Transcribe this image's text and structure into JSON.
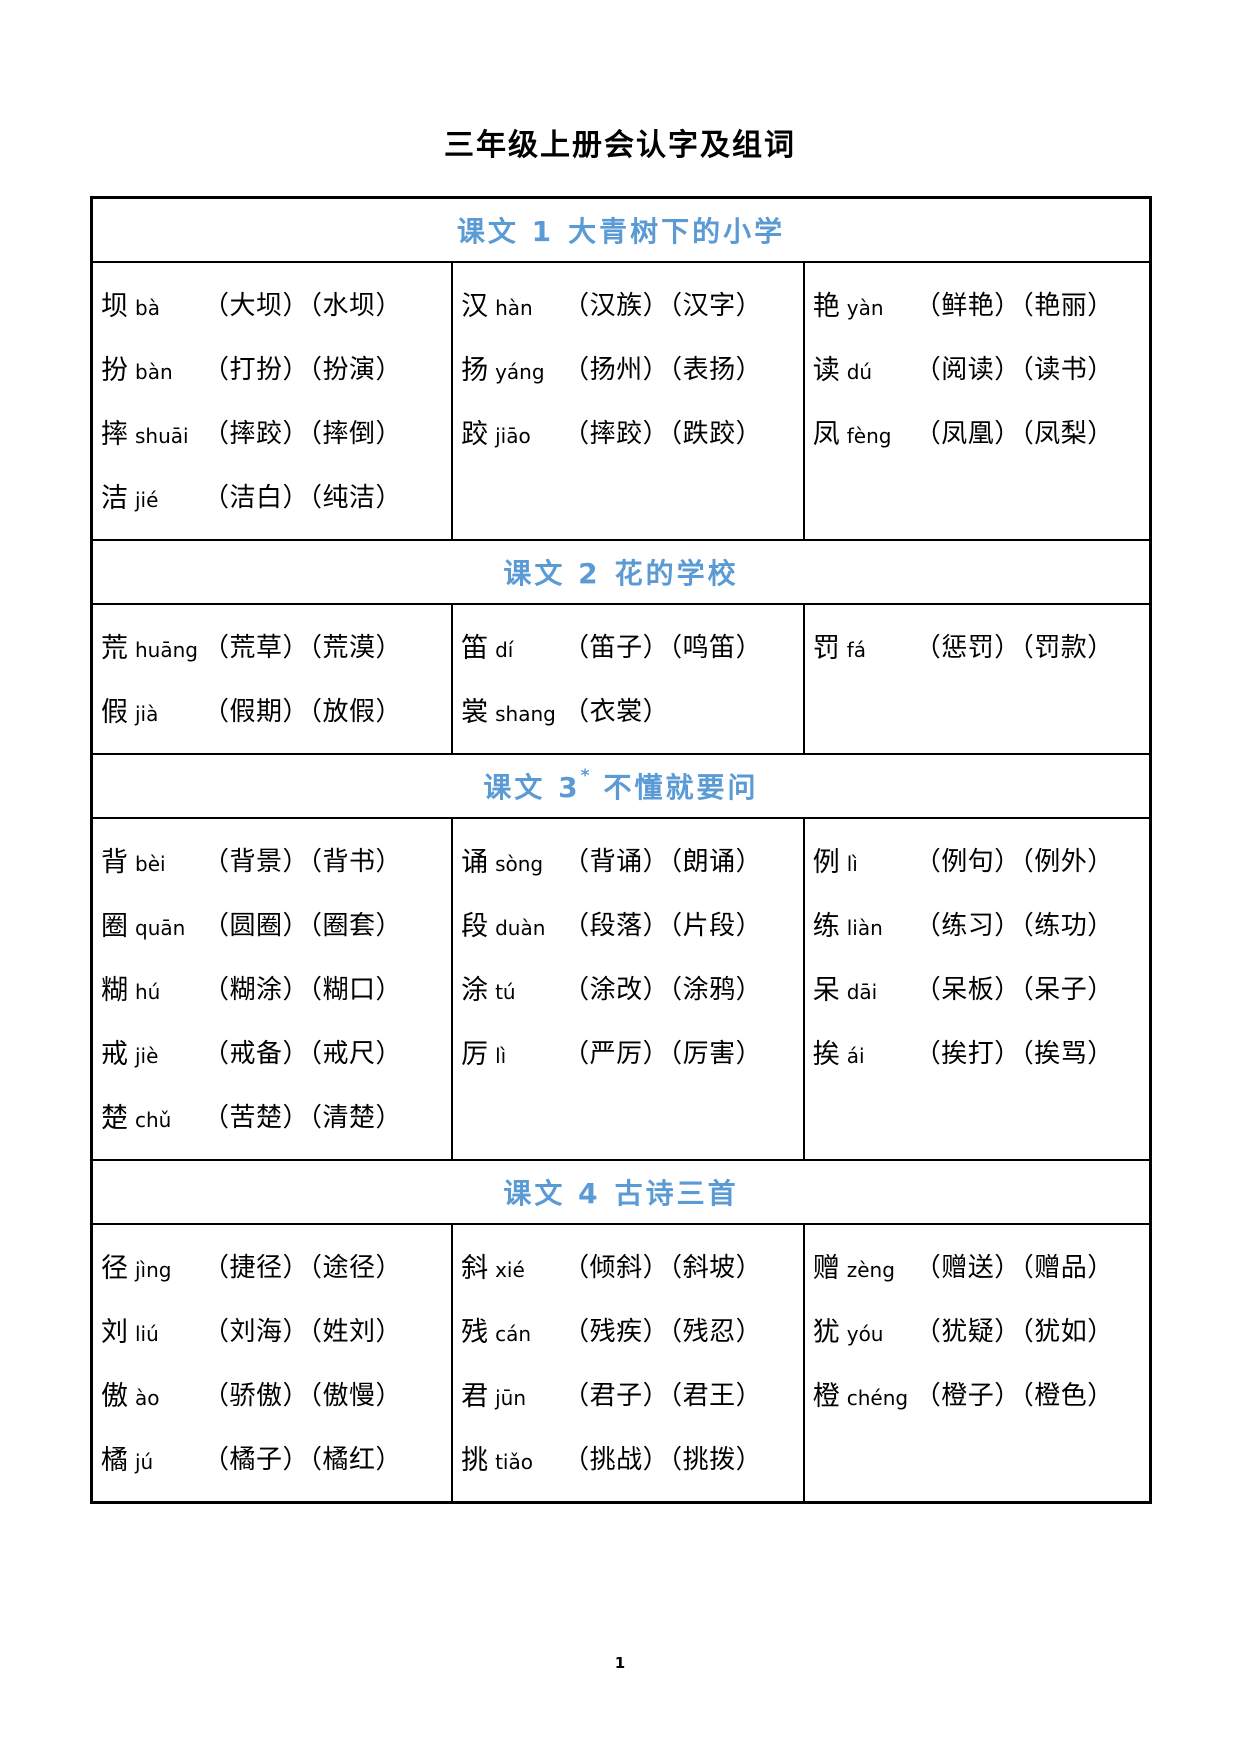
{
  "page": {
    "title": "三年级上册会认字及组词",
    "page_number": "1"
  },
  "colors": {
    "header_blue": "#5b9bd5",
    "border_black": "#000000",
    "text_black": "#000000"
  },
  "sections": [
    {
      "header": {
        "prefix": "课文 1",
        "sup": "",
        "suffix": "大青树下的小学"
      },
      "columns": [
        [
          {
            "char": "坝",
            "pinyin": "bà",
            "words": "（大坝）（水坝）"
          },
          {
            "char": "扮",
            "pinyin": "bàn",
            "words": "（打扮）（扮演）"
          },
          {
            "char": "摔",
            "pinyin": "shuāi",
            "words": "（摔跤）（摔倒）"
          },
          {
            "char": "洁",
            "pinyin": "jié",
            "words": "（洁白）（纯洁）"
          }
        ],
        [
          {
            "char": "汉",
            "pinyin": "hàn",
            "words": "（汉族）（汉字）"
          },
          {
            "char": "扬",
            "pinyin": "yáng",
            "words": "（扬州）（表扬）"
          },
          {
            "char": "跤",
            "pinyin": "jiāo",
            "words": "（摔跤）（跌跤）"
          }
        ],
        [
          {
            "char": "艳",
            "pinyin": "yàn",
            "words": "（鲜艳）（艳丽）"
          },
          {
            "char": "读",
            "pinyin": "dú",
            "words": "（阅读）（读书）"
          },
          {
            "char": "凤",
            "pinyin": "fèng",
            "words": "（凤凰）（凤梨）"
          }
        ]
      ]
    },
    {
      "header": {
        "prefix": "课文 2",
        "sup": "",
        "suffix": "花的学校"
      },
      "columns": [
        [
          {
            "char": "荒",
            "pinyin": "huāng",
            "words": "（荒草）（荒漠）"
          },
          {
            "char": "假",
            "pinyin": "jià",
            "words": "（假期）（放假）"
          }
        ],
        [
          {
            "char": "笛",
            "pinyin": "dí",
            "words": "（笛子）（鸣笛）"
          },
          {
            "char": "裳",
            "pinyin": "shang",
            "words": "（衣裳）"
          }
        ],
        [
          {
            "char": "罚",
            "pinyin": "fá",
            "words": "（惩罚）（罚款）"
          }
        ]
      ]
    },
    {
      "header": {
        "prefix": "课文 3",
        "sup": "*",
        "suffix": "不懂就要问"
      },
      "columns": [
        [
          {
            "char": "背",
            "pinyin": "bèi",
            "words": "（背景）（背书）"
          },
          {
            "char": "圈",
            "pinyin": "quān",
            "words": "（圆圈）（圈套）"
          },
          {
            "char": "糊",
            "pinyin": "hú",
            "words": "（糊涂）（糊口）"
          },
          {
            "char": "戒",
            "pinyin": "jiè",
            "words": "（戒备）（戒尺）"
          },
          {
            "char": "楚",
            "pinyin": "chǔ",
            "words": "（苦楚）（清楚）"
          }
        ],
        [
          {
            "char": "诵",
            "pinyin": "sòng",
            "words": "（背诵）（朗诵）"
          },
          {
            "char": "段",
            "pinyin": "duàn",
            "words": "（段落）（片段）"
          },
          {
            "char": "涂",
            "pinyin": "tú",
            "words": "（涂改）（涂鸦）"
          },
          {
            "char": "厉",
            "pinyin": "lì",
            "words": "（严厉）（厉害）"
          }
        ],
        [
          {
            "char": "例",
            "pinyin": "lì",
            "words": "（例句）（例外）"
          },
          {
            "char": "练",
            "pinyin": "liàn",
            "words": "（练习）（练功）"
          },
          {
            "char": "呆",
            "pinyin": "dāi",
            "words": "（呆板）（呆子）"
          },
          {
            "char": "挨",
            "pinyin": "ái",
            "words": "（挨打）（挨骂）"
          }
        ]
      ]
    },
    {
      "header": {
        "prefix": "课文 4",
        "sup": "",
        "suffix": "古诗三首"
      },
      "columns": [
        [
          {
            "char": "径",
            "pinyin": "jìng",
            "words": "（捷径）（途径）"
          },
          {
            "char": "刘",
            "pinyin": "liú",
            "words": "（刘海）（姓刘）"
          },
          {
            "char": "傲",
            "pinyin": "ào",
            "words": "（骄傲）（傲慢）"
          },
          {
            "char": "橘",
            "pinyin": "jú",
            "words": "（橘子）（橘红）"
          }
        ],
        [
          {
            "char": "斜",
            "pinyin": "xié",
            "words": "（倾斜）（斜坡）"
          },
          {
            "char": "残",
            "pinyin": "cán",
            "words": "（残疾）（残忍）"
          },
          {
            "char": "君",
            "pinyin": "jūn",
            "words": "（君子）（君王）"
          },
          {
            "char": "挑",
            "pinyin": "tiǎo",
            "words": "（挑战）（挑拨）"
          }
        ],
        [
          {
            "char": "赠",
            "pinyin": "zèng",
            "words": "（赠送）（赠品）"
          },
          {
            "char": "犹",
            "pinyin": "yóu",
            "words": "（犹疑）（犹如）"
          },
          {
            "char": "橙",
            "pinyin": "chéng",
            "words": "（橙子）（橙色）"
          }
        ]
      ]
    }
  ]
}
